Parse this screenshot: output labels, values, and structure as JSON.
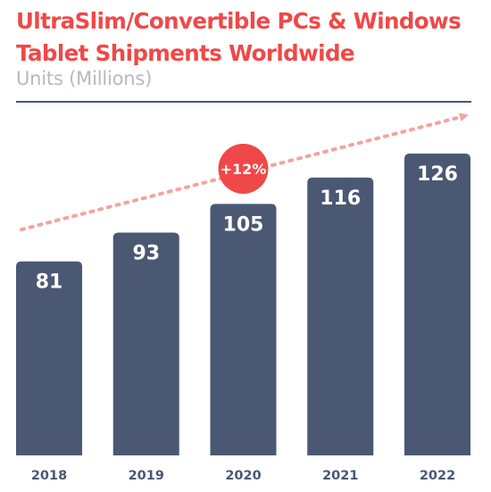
{
  "chart_data": {
    "type": "bar",
    "title_line1": "UltraSlim/Convertible PCs & Windows",
    "title_line2": "Tablet Shipments Worldwide",
    "subtitle": "Units (Millions)",
    "categories": [
      "2018",
      "2019",
      "2020",
      "2021",
      "2022"
    ],
    "values": [
      81,
      93,
      105,
      116,
      126
    ],
    "data_labels": [
      "81",
      "93",
      "105",
      "116",
      "126"
    ],
    "ylim": [
      0,
      126
    ],
    "grid": false,
    "legend": "none",
    "annotation": {
      "text": "+12%",
      "category": "2020",
      "style": "badge"
    },
    "trend_arrow": true
  },
  "colors": {
    "title": "#f04848",
    "subtitle": "#b5b9c2",
    "bar": "#4a5873",
    "tick": "#4a5873",
    "rule": "#4a5873",
    "arrow": "#f4a3a3",
    "badge": "#f04848"
  }
}
